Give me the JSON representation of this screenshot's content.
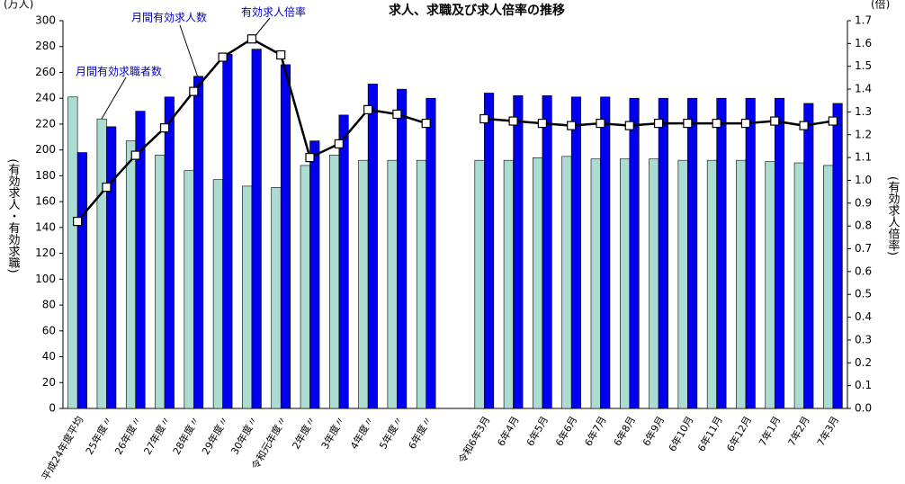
{
  "chart_data": {
    "type": "bar-line",
    "title": "求人、求職及び求人倍率の推移",
    "y_unit": "(万人)",
    "y2_unit": "(倍)",
    "y_label": "(有効求人・有効求職)",
    "y2_label": "(有効求人倍率)",
    "categories": [
      "平成24年度平均",
      "25年度〃",
      "26年度〃",
      "27年度〃",
      "28年度〃",
      "29年度〃",
      "30年度〃",
      "令和元年度〃",
      "2年度〃",
      "3年度〃",
      "4年度〃",
      "5年度〃",
      "6年度〃",
      null,
      "令和6年3月",
      "6年4月",
      "6年5月",
      "6年6月",
      "6年7月",
      "6年8月",
      "6年9月",
      "6年10月",
      "6年11月",
      "6年12月",
      "7年1月",
      "7年2月",
      "7年3月"
    ],
    "series": [
      {
        "name": "月間有効求職者数",
        "color": "#aadcd2",
        "type": "bar",
        "values": [
          241,
          224,
          207,
          196,
          184,
          177,
          172,
          171,
          188,
          196,
          192,
          192,
          192,
          null,
          192,
          192,
          194,
          195,
          193,
          193,
          193,
          192,
          192,
          192,
          191,
          190,
          188
        ]
      },
      {
        "name": "月間有効求人数",
        "color": "#0000ee",
        "type": "bar",
        "values": [
          198,
          218,
          230,
          241,
          257,
          274,
          278,
          266,
          207,
          227,
          251,
          247,
          240,
          null,
          244,
          242,
          242,
          241,
          241,
          240,
          240,
          240,
          240,
          240,
          240,
          236,
          236
        ]
      },
      {
        "name": "有効求人倍率",
        "color": "#000000",
        "type": "line",
        "axis": "y2",
        "values": [
          0.82,
          0.97,
          1.11,
          1.23,
          1.39,
          1.54,
          1.62,
          1.55,
          1.1,
          1.16,
          1.31,
          1.29,
          1.25,
          null,
          1.27,
          1.26,
          1.25,
          1.24,
          1.25,
          1.24,
          1.25,
          1.25,
          1.25,
          1.25,
          1.26,
          1.24,
          1.26
        ]
      }
    ],
    "ylim": [
      0,
      300
    ],
    "yticks": [
      0,
      20,
      40,
      60,
      80,
      100,
      120,
      140,
      160,
      180,
      200,
      220,
      240,
      260,
      280,
      300
    ],
    "y2lim": [
      0,
      1.7
    ],
    "y2ticks": [
      {
        "value": 0,
        "label": "0.0"
      },
      0.1,
      0.2,
      0.3,
      0.4,
      0.5,
      0.6,
      0.7,
      0.8,
      0.9,
      {
        "value": 1,
        "label": "1.0"
      },
      1.1,
      1.2,
      1.3,
      1.4,
      1.5,
      1.6,
      1.7
    ],
    "grid": false
  }
}
